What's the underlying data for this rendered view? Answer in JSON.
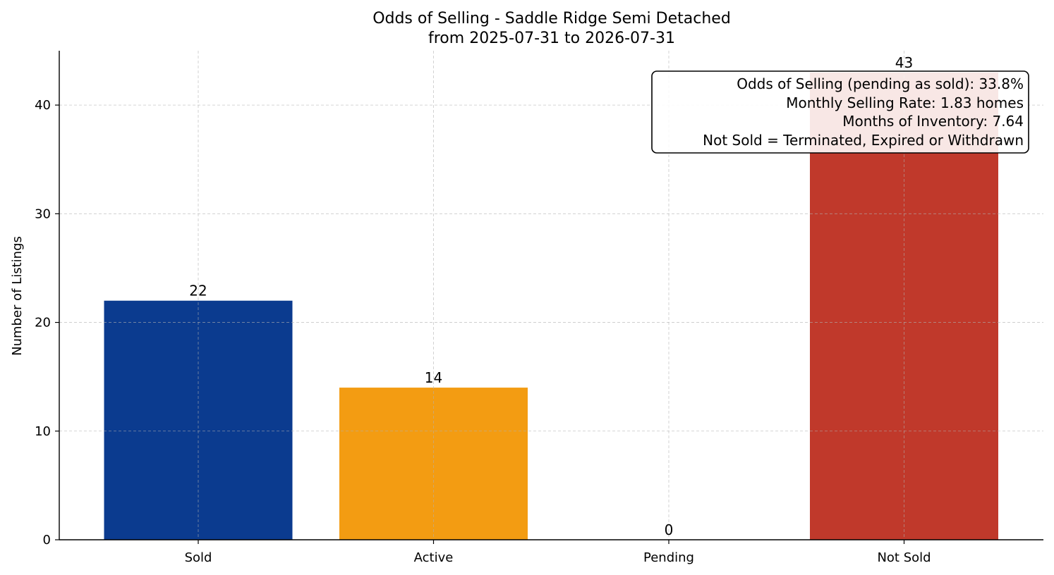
{
  "chart_data": {
    "type": "bar",
    "title": "Odds of Selling - Saddle Ridge Semi Detached",
    "subtitle": "from 2025-07-31 to 2026-07-31",
    "xlabel": "",
    "ylabel": "Number of Listings",
    "categories": [
      "Sold",
      "Active",
      "Pending",
      "Not Sold"
    ],
    "values": [
      22,
      14,
      0,
      43
    ],
    "bar_colors": [
      "#0b3b8f",
      "#f39c12",
      "#3a7d44",
      "#c0392b"
    ],
    "ylim": [
      0,
      45
    ],
    "yticks": [
      0,
      10,
      20,
      30,
      40
    ],
    "grid": true,
    "annotation_lines": [
      "Odds of Selling (pending as sold): 33.8%",
      "Monthly Selling Rate: 1.83 homes",
      "Months of Inventory: 7.64",
      "Not Sold = Terminated, Expired or Withdrawn"
    ],
    "annotation_placement": "top-right"
  }
}
